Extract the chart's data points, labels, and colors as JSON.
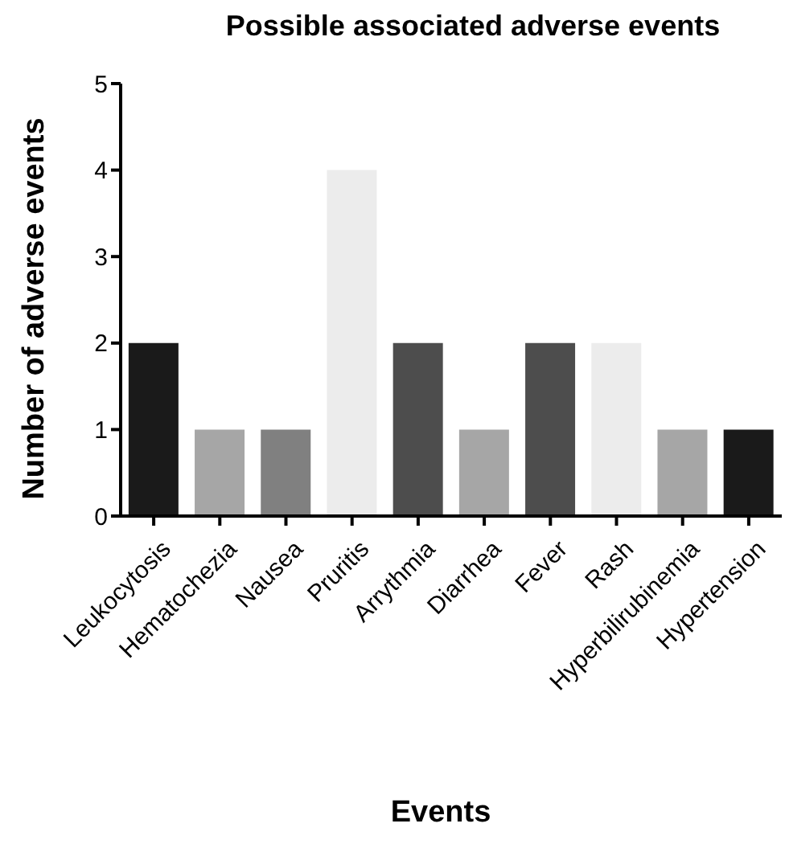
{
  "chart_data": {
    "type": "bar",
    "title": "Possible associated adverse events",
    "xlabel": "Events",
    "ylabel": "Number of adverse events",
    "categories": [
      "Leukocytosis",
      "Hematochezia",
      "Nausea",
      "Pruritis",
      "Arrythmia",
      "Diarrhea",
      "Fever",
      "Rash",
      "Hyperbilirubinemia",
      "Hypertension"
    ],
    "values": [
      2,
      1,
      1,
      4,
      2,
      1,
      2,
      2,
      1,
      1
    ],
    "colors": [
      "#1a1a1a",
      "#a6a6a6",
      "#808080",
      "#ececec",
      "#4d4d4d",
      "#a6a6a6",
      "#4d4d4d",
      "#ececec",
      "#a6a6a6",
      "#1a1a1a"
    ],
    "ylim": [
      0,
      5
    ],
    "yticks": [
      0,
      1,
      2,
      3,
      4,
      5
    ],
    "grid": false,
    "legend": false
  }
}
